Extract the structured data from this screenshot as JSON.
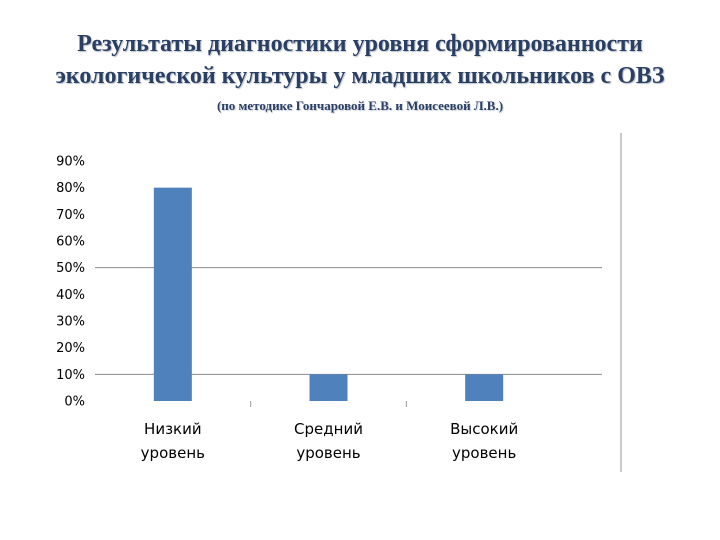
{
  "title": {
    "line1": "Результаты диагностики уровня сформированности",
    "line2": "экологической культуры у младших школьников с ОВЗ",
    "subtitle": "(по методике Гончаровой Е.В. и Моисеевой Л.В.)"
  },
  "chart_data": {
    "type": "bar",
    "categories": [
      [
        "Низкий",
        "уровень"
      ],
      [
        "Средний",
        "уровень"
      ],
      [
        "Высокий",
        "уровень"
      ]
    ],
    "values": [
      80,
      10,
      10
    ],
    "unit": "%",
    "ylim": [
      0,
      90
    ],
    "ytick_step": 10,
    "yticks": [
      "0%",
      "10%",
      "20%",
      "30%",
      "40%",
      "50%",
      "60%",
      "70%",
      "80%",
      "90%"
    ],
    "gridlines": [
      10,
      50
    ],
    "bar_color": "#4f81bd",
    "xlabel": "",
    "ylabel": ""
  }
}
